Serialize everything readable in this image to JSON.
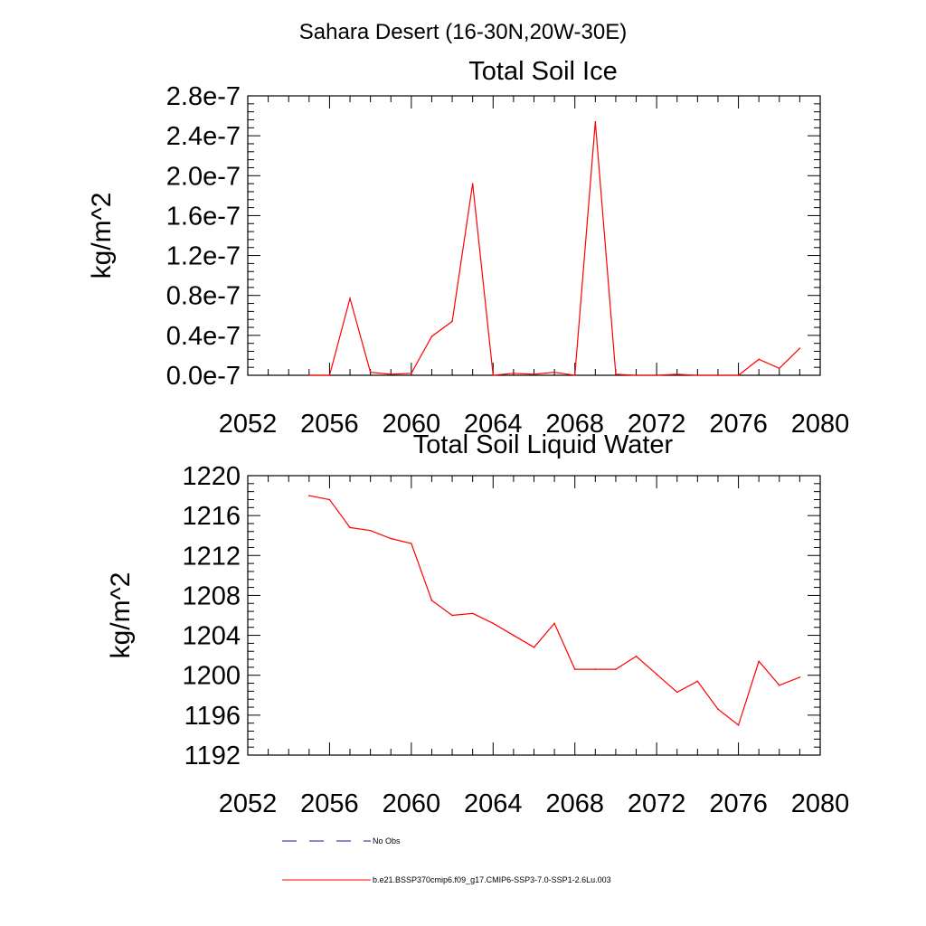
{
  "header": {
    "title": "Sahara Desert (16-30N,20W-30E)"
  },
  "chart_data": [
    {
      "type": "line",
      "title": "Total Soil Ice",
      "xlabel": "",
      "ylabel": "kg/m^2",
      "xlim": [
        2052,
        2080
      ],
      "ylim": [
        0,
        2.8e-07
      ],
      "xticks": [
        2052,
        2056,
        2060,
        2064,
        2068,
        2072,
        2076,
        2080
      ],
      "xtick_labels": [
        "2052",
        "2056",
        "2060",
        "2064",
        "2068",
        "2072",
        "2076",
        "2080"
      ],
      "yticks": [
        0,
        4e-08,
        8e-08,
        1.2e-07,
        1.6e-07,
        2e-07,
        2.4e-07,
        2.8e-07
      ],
      "ytick_labels": [
        "0.0e-7",
        "0.4e-7",
        "0.8e-7",
        "1.2e-7",
        "1.6e-7",
        "2.0e-7",
        "2.4e-7",
        "2.8e-7"
      ],
      "grid": false,
      "series": [
        {
          "color": "#ff0000",
          "x": [
            2055,
            2056,
            2057,
            2058,
            2059,
            2060,
            2061,
            2062,
            2063,
            2064,
            2065,
            2066,
            2067,
            2068,
            2069,
            2070,
            2071,
            2072,
            2073,
            2074,
            2075,
            2076,
            2077,
            2078,
            2079
          ],
          "values": [
            0,
            0,
            7.7e-08,
            3e-09,
            1e-09,
            2e-09,
            3.9e-08,
            5.4e-08,
            1.92e-07,
            0,
            2e-09,
            1e-09,
            3e-09,
            0,
            2.54e-07,
            1e-09,
            0,
            0,
            1e-09,
            0,
            0,
            0,
            1.6e-08,
            7e-09,
            2.7e-08
          ]
        }
      ]
    },
    {
      "type": "line",
      "title": "Total Soil Liquid Water",
      "xlabel": "",
      "ylabel": "kg/m^2",
      "xlim": [
        2052,
        2080
      ],
      "ylim": [
        1192,
        1220
      ],
      "xticks": [
        2052,
        2056,
        2060,
        2064,
        2068,
        2072,
        2076,
        2080
      ],
      "xtick_labels": [
        "2052",
        "2056",
        "2060",
        "2064",
        "2068",
        "2072",
        "2076",
        "2080"
      ],
      "yticks": [
        1192,
        1196,
        1200,
        1204,
        1208,
        1212,
        1216,
        1220
      ],
      "ytick_labels": [
        "1192",
        "1196",
        "1200",
        "1204",
        "1208",
        "1212",
        "1216",
        "1220"
      ],
      "grid": false,
      "series": [
        {
          "color": "#ff0000",
          "x": [
            2055,
            2056,
            2057,
            2058,
            2059,
            2060,
            2061,
            2062,
            2063,
            2064,
            2065,
            2066,
            2067,
            2068,
            2069,
            2070,
            2071,
            2072,
            2073,
            2074,
            2075,
            2076,
            2077,
            2078,
            2079
          ],
          "values": [
            1218.0,
            1217.6,
            1214.8,
            1214.5,
            1213.7,
            1213.2,
            1207.5,
            1206.0,
            1206.2,
            1205.2,
            1204.0,
            1202.8,
            1205.2,
            1200.6,
            1200.6,
            1200.6,
            1201.9,
            1200.1,
            1198.3,
            1199.4,
            1196.6,
            1195.0,
            1201.4,
            1199.0,
            1199.8
          ]
        }
      ]
    }
  ],
  "legend": {
    "items": [
      {
        "label": "No Obs",
        "color": "#1a1a80",
        "style": "dashed"
      },
      {
        "label": "b.e21.BSSP370cmip6.f09_g17.CMIP6-SSP3-7.0-SSP1-2.6Lu.003",
        "color": "#ff0000",
        "style": "solid"
      }
    ]
  }
}
